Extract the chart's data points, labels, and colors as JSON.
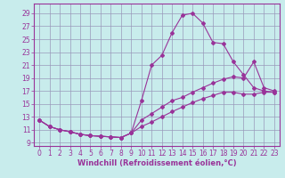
{
  "xlabel": "Windchill (Refroidissement éolien,°C)",
  "bg_color": "#c8ecec",
  "grid_color": "#9999bb",
  "line_color": "#993399",
  "spine_color": "#993399",
  "x_ticks": [
    0,
    1,
    2,
    3,
    4,
    5,
    6,
    7,
    8,
    9,
    10,
    11,
    12,
    13,
    14,
    15,
    16,
    17,
    18,
    19,
    20,
    21,
    22,
    23
  ],
  "y_ticks": [
    9,
    11,
    13,
    15,
    17,
    19,
    21,
    23,
    25,
    27,
    29
  ],
  "ylim": [
    8.5,
    30.5
  ],
  "xlim": [
    -0.5,
    23.5
  ],
  "line1_x": [
    0,
    1,
    2,
    3,
    4,
    5,
    6,
    7,
    8,
    9,
    10,
    11,
    12,
    13,
    14,
    15,
    16,
    17,
    18,
    19,
    20,
    21,
    22,
    23
  ],
  "line1_y": [
    12.5,
    11.5,
    11.0,
    10.7,
    10.3,
    10.1,
    10.0,
    9.9,
    9.8,
    10.5,
    15.5,
    21.0,
    22.5,
    26.0,
    28.7,
    29.0,
    27.5,
    24.5,
    24.3,
    21.5,
    19.5,
    17.5,
    17.0,
    16.8
  ],
  "line2_x": [
    0,
    1,
    2,
    3,
    4,
    5,
    6,
    7,
    8,
    9,
    10,
    11,
    12,
    13,
    14,
    15,
    16,
    17,
    18,
    19,
    20,
    21,
    22,
    23
  ],
  "line2_y": [
    12.5,
    11.5,
    11.0,
    10.7,
    10.3,
    10.1,
    10.0,
    9.9,
    9.8,
    10.5,
    12.5,
    13.5,
    14.5,
    15.5,
    16.0,
    16.8,
    17.5,
    18.2,
    18.8,
    19.2,
    19.0,
    21.5,
    17.5,
    17.0
  ],
  "line3_x": [
    0,
    1,
    2,
    3,
    4,
    5,
    6,
    7,
    8,
    9,
    10,
    11,
    12,
    13,
    14,
    15,
    16,
    17,
    18,
    19,
    20,
    21,
    22,
    23
  ],
  "line3_y": [
    12.5,
    11.5,
    11.0,
    10.7,
    10.3,
    10.1,
    10.0,
    9.9,
    9.8,
    10.5,
    11.5,
    12.2,
    13.0,
    13.8,
    14.5,
    15.2,
    15.8,
    16.3,
    16.8,
    16.8,
    16.5,
    16.5,
    16.8,
    16.8
  ],
  "tick_fontsize": 5.5,
  "xlabel_fontsize": 6.0
}
